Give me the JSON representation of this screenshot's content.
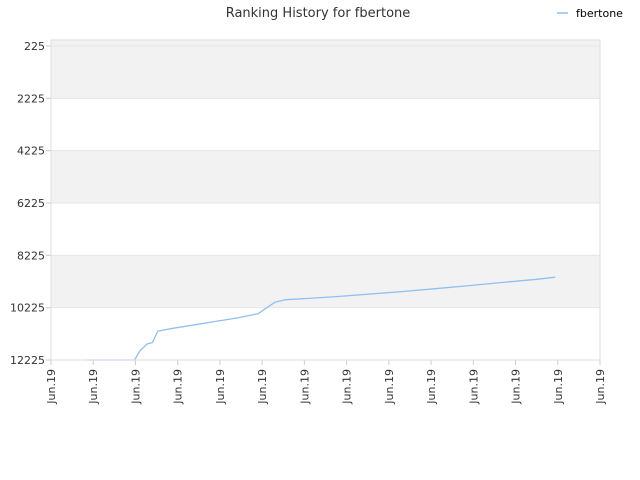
{
  "chart_data": {
    "type": "line",
    "title": "Ranking History for fbertone",
    "xlabel": "",
    "ylabel": "",
    "legend": "top-right",
    "grid": true,
    "y_inverted": true,
    "ylim": [
      225,
      12225
    ],
    "yticks": [
      225,
      2225,
      4225,
      6225,
      8225,
      10225,
      12225
    ],
    "xticks": [
      "Jun.19",
      "Jun.19",
      "Jun.19",
      "Jun.19",
      "Jun.19",
      "Jun.19",
      "Jun.19",
      "Jun.19",
      "Jun.19",
      "Jun.19",
      "Jun.19",
      "Jun.19",
      "Jun.19",
      "Jun.19"
    ],
    "series": [
      {
        "name": "fbertone",
        "color": "#90c0f0",
        "points": [
          [
            0.84,
            12225
          ],
          [
            1.2,
            12225
          ],
          [
            1.6,
            12225
          ],
          [
            1.98,
            12225
          ],
          [
            2.1,
            11880
          ],
          [
            2.28,
            11610
          ],
          [
            2.4,
            11560
          ],
          [
            2.53,
            11120
          ],
          [
            2.9,
            11010
          ],
          [
            3.4,
            10880
          ],
          [
            3.9,
            10750
          ],
          [
            4.4,
            10620
          ],
          [
            4.9,
            10460
          ],
          [
            5.3,
            10020
          ],
          [
            5.55,
            9920
          ],
          [
            6.1,
            9870
          ],
          [
            6.8,
            9800
          ],
          [
            7.5,
            9710
          ],
          [
            8.3,
            9610
          ],
          [
            9.1,
            9500
          ],
          [
            9.9,
            9380
          ],
          [
            10.7,
            9260
          ],
          [
            11.5,
            9140
          ],
          [
            11.94,
            9060
          ]
        ]
      }
    ]
  }
}
